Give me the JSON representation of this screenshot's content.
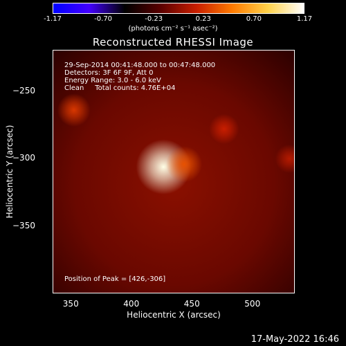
{
  "colorbar": {
    "ticks": [
      "-1.17",
      "-0.70",
      "-0.23",
      "0.23",
      "0.70",
      "1.17"
    ],
    "tick_values": [
      -1.17,
      -0.7,
      -0.23,
      0.23,
      0.7,
      1.17
    ],
    "units_label": "(photons cm⁻² s⁻¹ asec⁻²)",
    "gradient_colors": [
      "#0000ff",
      "#4400ff",
      "#000000",
      "#5a0000",
      "#c81e00",
      "#ff7a00",
      "#ffd24a",
      "#ffffff"
    ]
  },
  "chart_data": {
    "type": "heatmap",
    "title": "Reconstructed RHESSI Image",
    "xlabel": "Heliocentric X (arcsec)",
    "ylabel": "Heliocentric Y (arcsec)",
    "xlim": [
      335,
      535
    ],
    "ylim": [
      -400,
      -220
    ],
    "xticks": [
      350,
      400,
      450,
      500
    ],
    "yticks": [
      -250,
      -300,
      -350
    ],
    "xtick_labels": [
      "350",
      "400",
      "450",
      "500"
    ],
    "ytick_labels": [
      "−250",
      "−300",
      "−350"
    ],
    "peak_position": [
      426,
      -306
    ],
    "sources": [
      {
        "x": 426,
        "y": -306,
        "level": 1.17
      },
      {
        "x": 443,
        "y": -304,
        "level": 0.55
      },
      {
        "x": 352,
        "y": -264,
        "level": 0.45
      },
      {
        "x": 476,
        "y": -278,
        "level": 0.35
      },
      {
        "x": 530,
        "y": -300,
        "level": 0.3
      }
    ]
  },
  "info": {
    "time_range": "29-Sep-2014 00:41:48.000 to 00:47:48.000",
    "detectors": "Detectors: 3F 6F 9F, Att 0",
    "energy_range": "Energy Range: 3.0 - 6.0 keV",
    "clean_counts": "Clean     Total counts: 4.76E+04",
    "peak": "Position of Peak = [426,-306]"
  },
  "footer": {
    "date": "17-May-2022 16:46"
  }
}
